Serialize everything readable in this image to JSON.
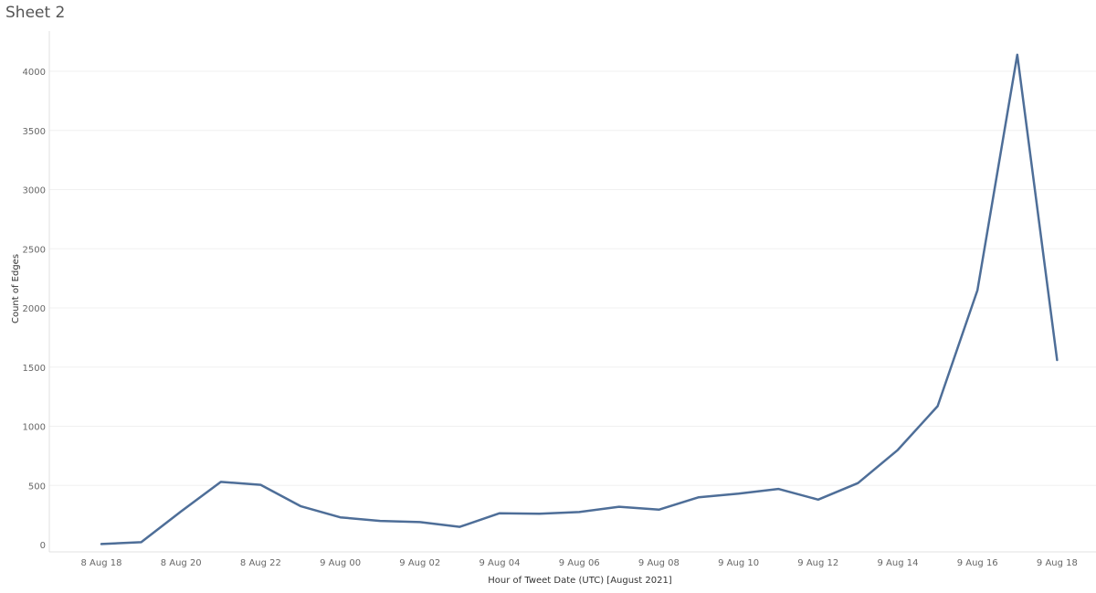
{
  "sheet": {
    "title": "Sheet 2"
  },
  "colors": {
    "line": "#4e6e98",
    "grid": "#f0f0f0",
    "axis_line": "#e0e0e0"
  },
  "chart_data": {
    "type": "line",
    "title": "",
    "xlabel": "Hour of Tweet Date (UTC) [August 2021]",
    "ylabel": "Count of Edges",
    "x": [
      "8 Aug 18",
      "8 Aug 19",
      "8 Aug 20",
      "8 Aug 21",
      "8 Aug 22",
      "8 Aug 23",
      "9 Aug 00",
      "9 Aug 01",
      "9 Aug 02",
      "9 Aug 03",
      "9 Aug 04",
      "9 Aug 05",
      "9 Aug 06",
      "9 Aug 07",
      "9 Aug 08",
      "9 Aug 09",
      "9 Aug 10",
      "9 Aug 11",
      "9 Aug 12",
      "9 Aug 13",
      "9 Aug 14",
      "9 Aug 15",
      "9 Aug 16",
      "9 Aug 17",
      "9 Aug 18"
    ],
    "x_tick_labels": [
      "8 Aug 18",
      "8 Aug 20",
      "8 Aug 22",
      "9 Aug 00",
      "9 Aug 02",
      "9 Aug 04",
      "9 Aug 06",
      "9 Aug 08",
      "9 Aug 10",
      "9 Aug 12",
      "9 Aug 14",
      "9 Aug 16",
      "9 Aug 18"
    ],
    "series": [
      {
        "values": [
          5,
          20,
          280,
          530,
          505,
          325,
          230,
          200,
          190,
          150,
          265,
          260,
          275,
          320,
          295,
          400,
          430,
          470,
          380,
          520,
          800,
          1170,
          2150,
          4140,
          1560
        ]
      }
    ],
    "yticks": [
      0,
      500,
      1000,
      1500,
      2000,
      2500,
      3000,
      3500,
      4000
    ],
    "ylim": [
      0,
      4200
    ],
    "grid": "horizontal"
  }
}
